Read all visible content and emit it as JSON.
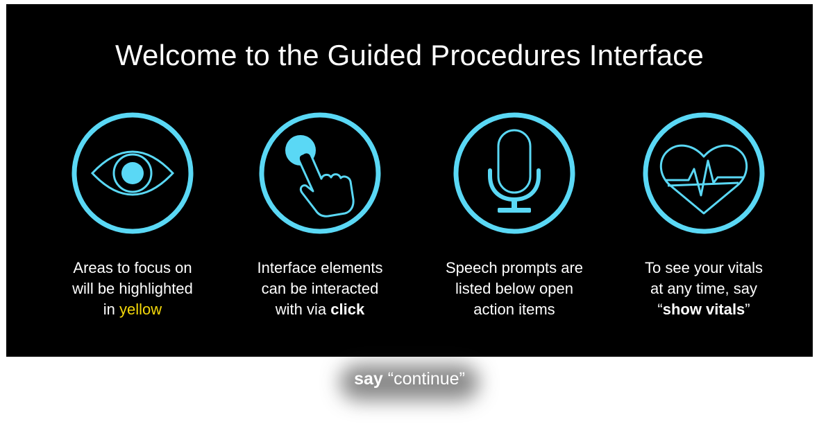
{
  "title": "Welcome to the Guided Procedures Interface",
  "accent_color": "#5ad8f5",
  "highlight_color": "#f5d90a",
  "cards": [
    {
      "icon": "eye-icon",
      "line1": "Areas to focus on",
      "line2": "will be highlighted",
      "line3_prefix": "in ",
      "line3_highlight": "yellow"
    },
    {
      "icon": "tap-hand-icon",
      "line1": "Interface elements",
      "line2": "can be interacted",
      "line3_prefix": "with via ",
      "line3_bold": "click"
    },
    {
      "icon": "microphone-icon",
      "line1": "Speech prompts are",
      "line2": "listed below open",
      "line3": "action items"
    },
    {
      "icon": "heart-pulse-icon",
      "line1": "To see your vitals",
      "line2": "at any time, say",
      "line3_open_quote": "“",
      "line3_bold": "show vitals",
      "line3_close_quote": "”"
    }
  ],
  "voice_prompt": {
    "say": "say",
    "command": " “continue”"
  }
}
